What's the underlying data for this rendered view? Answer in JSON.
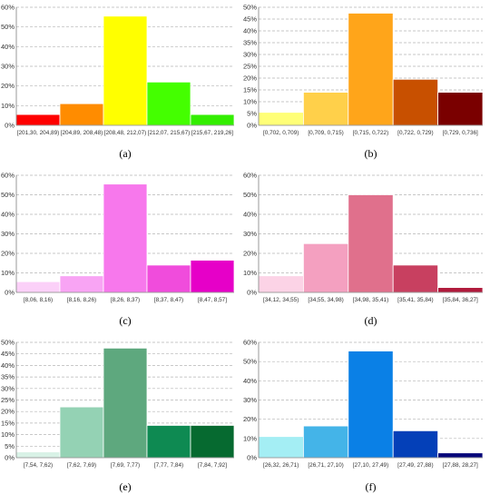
{
  "chart_data": [
    {
      "type": "bar",
      "panel": "(a)",
      "categories": [
        "[201,30, 204,89)",
        "[204,89, 208,48)",
        "[208,48, 212,07)",
        "[212,07, 215,67)",
        "[215,67, 219,26]"
      ],
      "values": [
        5.5,
        11,
        55.5,
        22,
        5.5
      ],
      "colors": [
        "#ff0000",
        "#ff8c00",
        "#ffff00",
        "#44ff00",
        "#33ee00"
      ],
      "ylim": [
        0,
        60
      ],
      "yticks": [
        0,
        10,
        20,
        30,
        40,
        50,
        60
      ],
      "tick_suffix": "%",
      "grid": true
    },
    {
      "type": "bar",
      "panel": "(b)",
      "categories": [
        "[0,702, 0,709)",
        "[0,709, 0,715)",
        "[0,715, 0,722)",
        "[0,722, 0,729)",
        "[0,729, 0,736]"
      ],
      "values": [
        5.5,
        14,
        47.5,
        19.5,
        14
      ],
      "colors": [
        "#ffff77",
        "#ffd04a",
        "#ffa51a",
        "#c85000",
        "#7a0000"
      ],
      "ylim": [
        0,
        50
      ],
      "yticks": [
        0,
        5,
        10,
        15,
        20,
        25,
        30,
        35,
        40,
        45,
        50
      ],
      "tick_suffix": "%",
      "grid": true
    },
    {
      "type": "bar",
      "panel": "(c)",
      "categories": [
        "[8,06, 8,16)",
        "[8,16, 8,26)",
        "[8,26, 8,37)",
        "[8,37, 8,47)",
        "[8,47, 8,57]"
      ],
      "values": [
        5.5,
        8.5,
        55.5,
        14,
        16.5
      ],
      "colors": [
        "#fbd0f8",
        "#f8a4f4",
        "#f778ec",
        "#f04cdc",
        "#e600c8"
      ],
      "ylim": [
        0,
        60
      ],
      "yticks": [
        0,
        10,
        20,
        30,
        40,
        50,
        60
      ],
      "tick_suffix": "%",
      "grid": true
    },
    {
      "type": "bar",
      "panel": "(d)",
      "categories": [
        "[34,12, 34,55)",
        "[34,55, 34,98)",
        "[34,98, 35,41)",
        "[35,41, 35,84)",
        "[35,84, 36,27]"
      ],
      "values": [
        8.5,
        25,
        50,
        14,
        2.5
      ],
      "colors": [
        "#fcd3e6",
        "#f4a0c0",
        "#e0708c",
        "#c84060",
        "#b01a3c"
      ],
      "ylim": [
        0,
        60
      ],
      "yticks": [
        0,
        10,
        20,
        30,
        40,
        50,
        60
      ],
      "tick_suffix": "%",
      "grid": true
    },
    {
      "type": "bar",
      "panel": "(e)",
      "categories": [
        "[7,54, 7,62)",
        "[7,62, 7,69)",
        "[7,69, 7,77)",
        "[7,77, 7,84)",
        "[7,84, 7,92]"
      ],
      "values": [
        2.5,
        22,
        47.5,
        14,
        14
      ],
      "colors": [
        "#d8f2e6",
        "#94d2b4",
        "#5ea87e",
        "#0e8a52",
        "#066a30"
      ],
      "ylim": [
        0,
        50
      ],
      "yticks": [
        0,
        5,
        10,
        15,
        20,
        25,
        30,
        35,
        40,
        45,
        50
      ],
      "tick_suffix": "%",
      "grid": true
    },
    {
      "type": "bar",
      "panel": "(f)",
      "categories": [
        "[26,32, 26,71)",
        "[26,71, 27,10)",
        "[27,10, 27,49)",
        "[27,49, 27,88)",
        "[27,88, 28,27]"
      ],
      "values": [
        11,
        16.5,
        55.5,
        14,
        2.5
      ],
      "colors": [
        "#a4eef4",
        "#44b4e8",
        "#0a80e6",
        "#0440b8",
        "#08087a"
      ],
      "ylim": [
        0,
        60
      ],
      "yticks": [
        0,
        10,
        20,
        30,
        40,
        50,
        60
      ],
      "tick_suffix": "%",
      "grid": true
    }
  ]
}
